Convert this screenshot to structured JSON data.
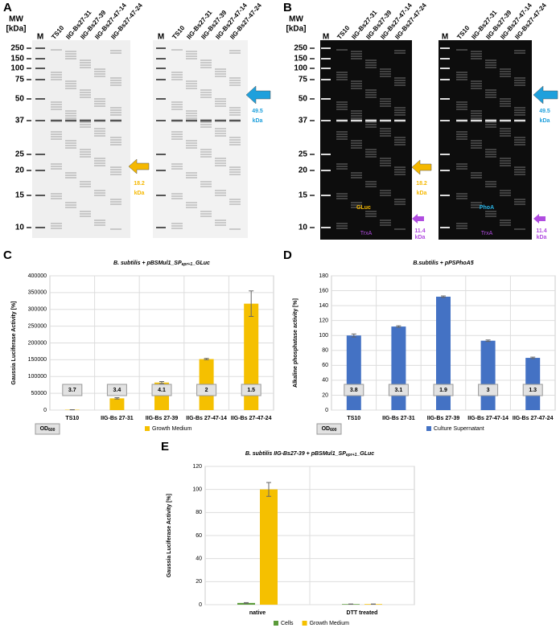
{
  "gels": {
    "A": {
      "label": "A",
      "mw_title": "MW",
      "mw_unit": "[kDa]",
      "marker": "M",
      "markers": [
        250,
        150,
        100,
        75,
        50,
        37,
        25,
        20,
        15,
        10
      ],
      "lanes": [
        "TS10",
        "IIG-Bs27-31",
        "IIG-Bs27-39",
        "IIG-Bs27-47-14",
        "IIG-Bs27-47-24"
      ],
      "arrow_gluc": {
        "size": "18.2",
        "unit": "kDa"
      },
      "arrow_phoa": {
        "size": "49.5",
        "unit": "kDa"
      }
    },
    "B": {
      "label": "B",
      "mw_title": "MW",
      "mw_unit": "[kDa]",
      "marker": "M",
      "markers": [
        250,
        150,
        100,
        75,
        50,
        37,
        25,
        20,
        15,
        10
      ],
      "lanes": [
        "TS10",
        "IIG-Bs27-31",
        "IIG-Bs27-39",
        "IIG-Bs27-47-14",
        "IIG-Bs27-47-24"
      ],
      "gel1_name": "GLuc",
      "gel2_name": "PhoA",
      "trxa": "TrxA",
      "arrow_gluc": {
        "size": "18.2",
        "unit": "kDa"
      },
      "arrow_phoa": {
        "size": "49.5",
        "unit": "kDa"
      },
      "arrow_trxa": {
        "size": "11.4",
        "unit": "kDa"
      }
    }
  },
  "chart_data": [
    {
      "type": "bar",
      "panel": "C",
      "title": "B. subtilis + pBSMul1_SP",
      "title_sub": "epr+1",
      "title_end": "_GLuc",
      "y_label": "Gaussia Luciferase Activity [%]",
      "categories": [
        "TS10",
        "IIG-Bs 27-31",
        "IIG-Bs 27-39",
        "IIG-Bs 27-47-14",
        "IIG-Bs 27-47-24"
      ],
      "series": [
        {
          "name": "Growth Medium",
          "color": "#f5c000",
          "values": [
            1000,
            35000,
            82000,
            152000,
            317000
          ],
          "errors": [
            0,
            2000,
            3000,
            2000,
            38000
          ]
        }
      ],
      "od600": [
        3.7,
        3.4,
        4.1,
        2.0,
        1.5
      ],
      "od_label": "OD",
      "od_sub": "600",
      "ylim": [
        0,
        400000
      ],
      "yticks": [
        0,
        50000,
        100000,
        150000,
        200000,
        250000,
        300000,
        350000,
        400000
      ],
      "grid": true
    },
    {
      "type": "bar",
      "panel": "D",
      "title": "B.subtilis + pPSPhoA5",
      "title_sub": "",
      "title_end": "",
      "y_label": "Alkaline phosphatase activity [%]",
      "categories": [
        "TS10",
        "IIG-Bs 27-31",
        "IIG-Bs 27-39",
        "IIG-Bs 27-47-14",
        "IIG-Bs 27-47-24"
      ],
      "series": [
        {
          "name": "Culture Supernatant",
          "color": "#4472c4",
          "values": [
            100,
            112,
            152,
            93,
            70
          ],
          "errors": [
            2,
            1,
            1,
            1,
            1
          ]
        }
      ],
      "od600": [
        3.8,
        3.1,
        1.9,
        3.0,
        1.3
      ],
      "od_label": "OD",
      "od_sub": "600",
      "ylim": [
        0,
        180
      ],
      "yticks": [
        0,
        20,
        40,
        60,
        80,
        100,
        120,
        140,
        160,
        180
      ],
      "grid": true
    },
    {
      "type": "bar",
      "panel": "E",
      "title": "B. subtilis IIG-Bs27-39 + pBSMul1_SP",
      "title_sub": "epr+1",
      "title_end": "_GLuc",
      "y_label": "Gaussia Luciferase Activity [%]",
      "categories": [
        "native",
        "DTT treated"
      ],
      "series": [
        {
          "name": "Cells",
          "color": "#5b9b3a",
          "values": [
            1.5,
            0.5
          ],
          "errors": [
            0.3,
            0.1
          ]
        },
        {
          "name": "Growth Medium",
          "color": "#f5c000",
          "values": [
            100,
            0.5
          ],
          "errors": [
            6,
            0.1
          ]
        }
      ],
      "ylim": [
        0,
        120
      ],
      "yticks": [
        0,
        20,
        40,
        60,
        80,
        100,
        120
      ],
      "grid": true
    }
  ]
}
